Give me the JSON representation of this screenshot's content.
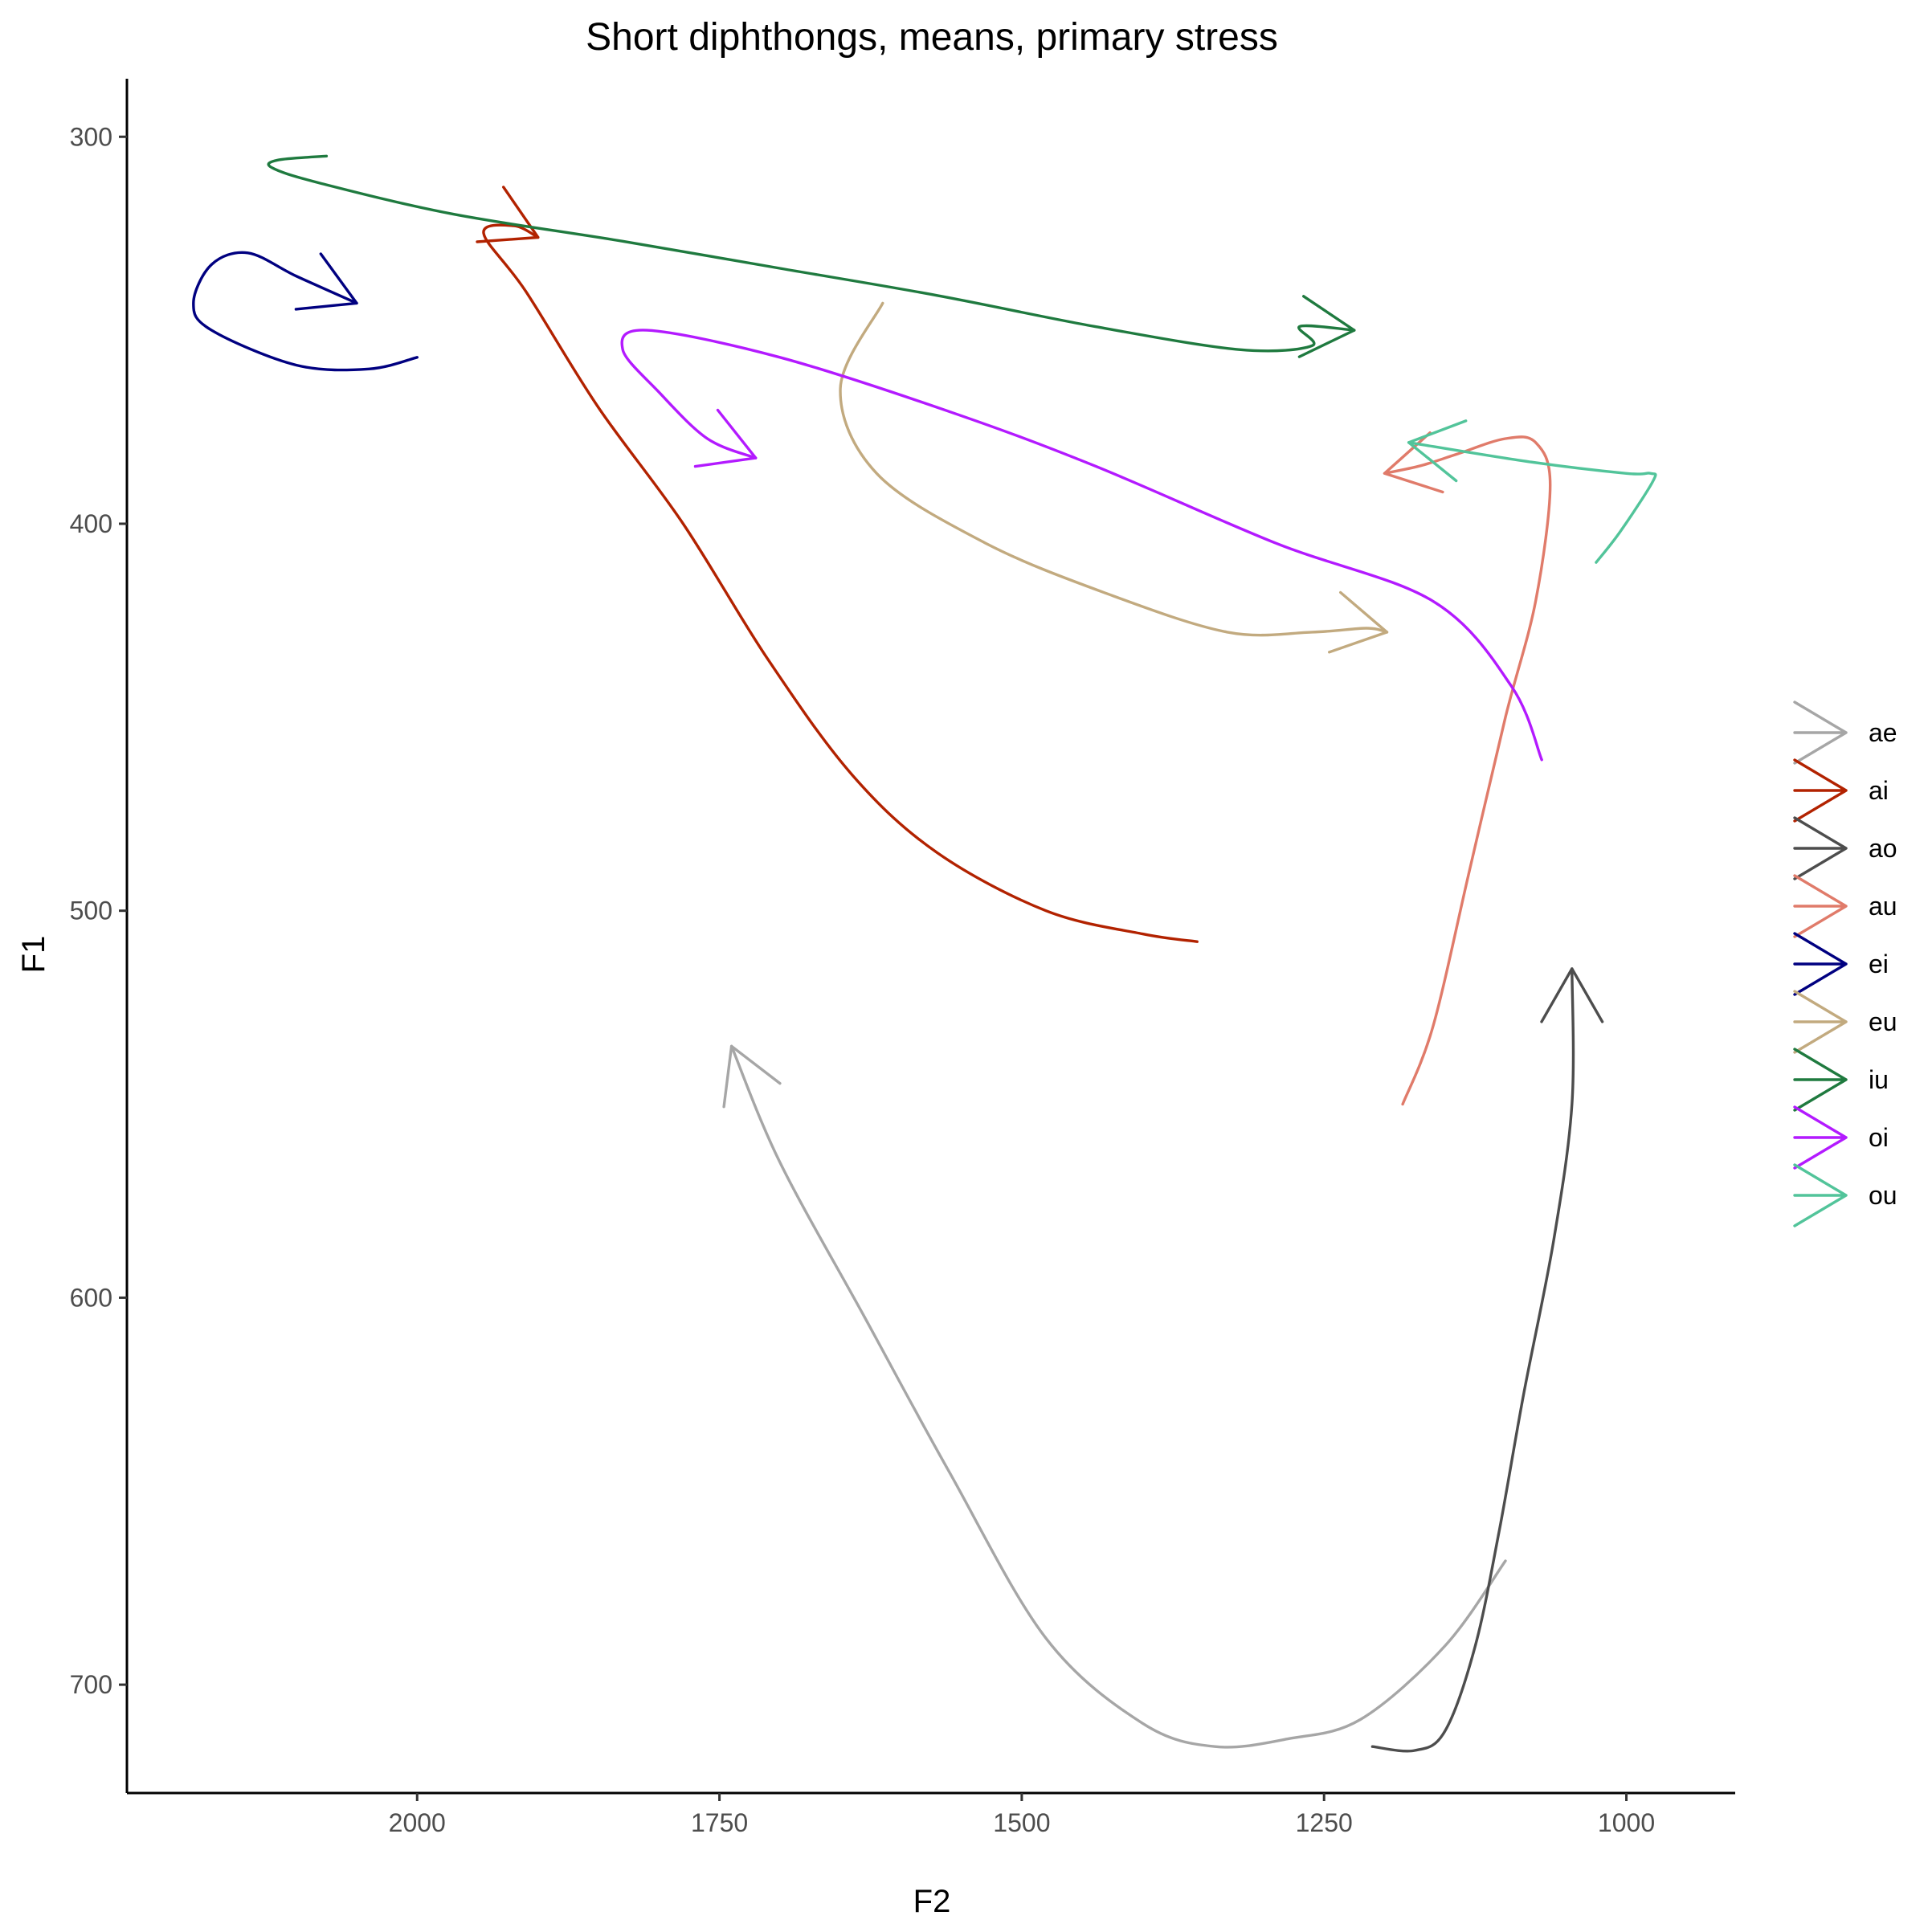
{
  "chart_data": {
    "type": "line",
    "title": "Short diphthongs, means, primary stress",
    "xlabel": "F2",
    "ylabel": "F1",
    "x_reversed": true,
    "y_reversed": true,
    "xlim": [
      2240,
      910
    ],
    "ylim": [
      285,
      728
    ],
    "x_ticks": [
      2000,
      1750,
      1500,
      1250,
      1000
    ],
    "y_ticks": [
      300,
      400,
      500,
      600,
      700
    ],
    "grid": false,
    "legend_position": "right",
    "series": [
      {
        "name": "ae",
        "color": "#a6a6a6",
        "points": [
          [
            1100,
            668
          ],
          [
            1150,
            690
          ],
          [
            1220,
            709
          ],
          [
            1280,
            714
          ],
          [
            1340,
            716
          ],
          [
            1400,
            710
          ],
          [
            1480,
            688
          ],
          [
            1560,
            645
          ],
          [
            1630,
            605
          ],
          [
            1700,
            565
          ],
          [
            1740,
            535
          ]
        ]
      },
      {
        "name": "ai",
        "color": "#b22200",
        "points": [
          [
            1355,
            508
          ],
          [
            1400,
            506
          ],
          [
            1480,
            500
          ],
          [
            1570,
            485
          ],
          [
            1640,
            465
          ],
          [
            1710,
            435
          ],
          [
            1780,
            400
          ],
          [
            1850,
            370
          ],
          [
            1910,
            340
          ],
          [
            1945,
            325
          ],
          [
            1920,
            323
          ],
          [
            1900,
            326
          ]
        ]
      },
      {
        "name": "ao",
        "color": "#4d4d4d",
        "points": [
          [
            1210,
            716
          ],
          [
            1175,
            717
          ],
          [
            1150,
            712
          ],
          [
            1125,
            690
          ],
          [
            1105,
            660
          ],
          [
            1085,
            625
          ],
          [
            1060,
            585
          ],
          [
            1045,
            550
          ],
          [
            1045,
            515
          ]
        ]
      },
      {
        "name": "au",
        "color": "#e07b6a",
        "points": [
          [
            1185,
            550
          ],
          [
            1160,
            530
          ],
          [
            1130,
            490
          ],
          [
            1100,
            450
          ],
          [
            1075,
            420
          ],
          [
            1063,
            390
          ],
          [
            1075,
            379
          ],
          [
            1100,
            378
          ],
          [
            1140,
            382
          ],
          [
            1170,
            385
          ],
          [
            1200,
            387
          ]
        ]
      },
      {
        "name": "ei",
        "color": "#000080",
        "points": [
          [
            2000,
            357
          ],
          [
            2040,
            360
          ],
          [
            2100,
            359
          ],
          [
            2170,
            350
          ],
          [
            2185,
            343
          ],
          [
            2170,
            333
          ],
          [
            2140,
            330
          ],
          [
            2100,
            336
          ],
          [
            2050,
            343
          ]
        ]
      },
      {
        "name": "eu",
        "color": "#c2aa7f",
        "points": [
          [
            1615,
            343
          ],
          [
            1650,
            365
          ],
          [
            1620,
            387
          ],
          [
            1530,
            405
          ],
          [
            1430,
            418
          ],
          [
            1330,
            428
          ],
          [
            1260,
            428
          ],
          [
            1215,
            427
          ],
          [
            1198,
            428
          ]
        ]
      },
      {
        "name": "iu",
        "color": "#1f7a3f",
        "points": [
          [
            2075,
            305
          ],
          [
            2115,
            306
          ],
          [
            2120,
            308
          ],
          [
            2080,
            312
          ],
          [
            1970,
            320
          ],
          [
            1830,
            327
          ],
          [
            1700,
            334
          ],
          [
            1570,
            341
          ],
          [
            1440,
            349
          ],
          [
            1320,
            355
          ],
          [
            1260,
            354
          ],
          [
            1270,
            349
          ],
          [
            1225,
            350
          ]
        ]
      },
      {
        "name": "oi",
        "color": "#b31aff",
        "points": [
          [
            1070,
            461
          ],
          [
            1095,
            442
          ],
          [
            1160,
            420
          ],
          [
            1290,
            405
          ],
          [
            1440,
            385
          ],
          [
            1560,
            371
          ],
          [
            1700,
            357
          ],
          [
            1810,
            350
          ],
          [
            1830,
            355
          ],
          [
            1800,
            366
          ],
          [
            1760,
            378
          ],
          [
            1720,
            383
          ]
        ]
      },
      {
        "name": "ou",
        "color": "#52c49a",
        "points": [
          [
            1025,
            410
          ],
          [
            1005,
            402
          ],
          [
            978,
            389
          ],
          [
            980,
            387
          ],
          [
            1000,
            387
          ],
          [
            1080,
            384
          ],
          [
            1180,
            379
          ]
        ]
      }
    ]
  }
}
